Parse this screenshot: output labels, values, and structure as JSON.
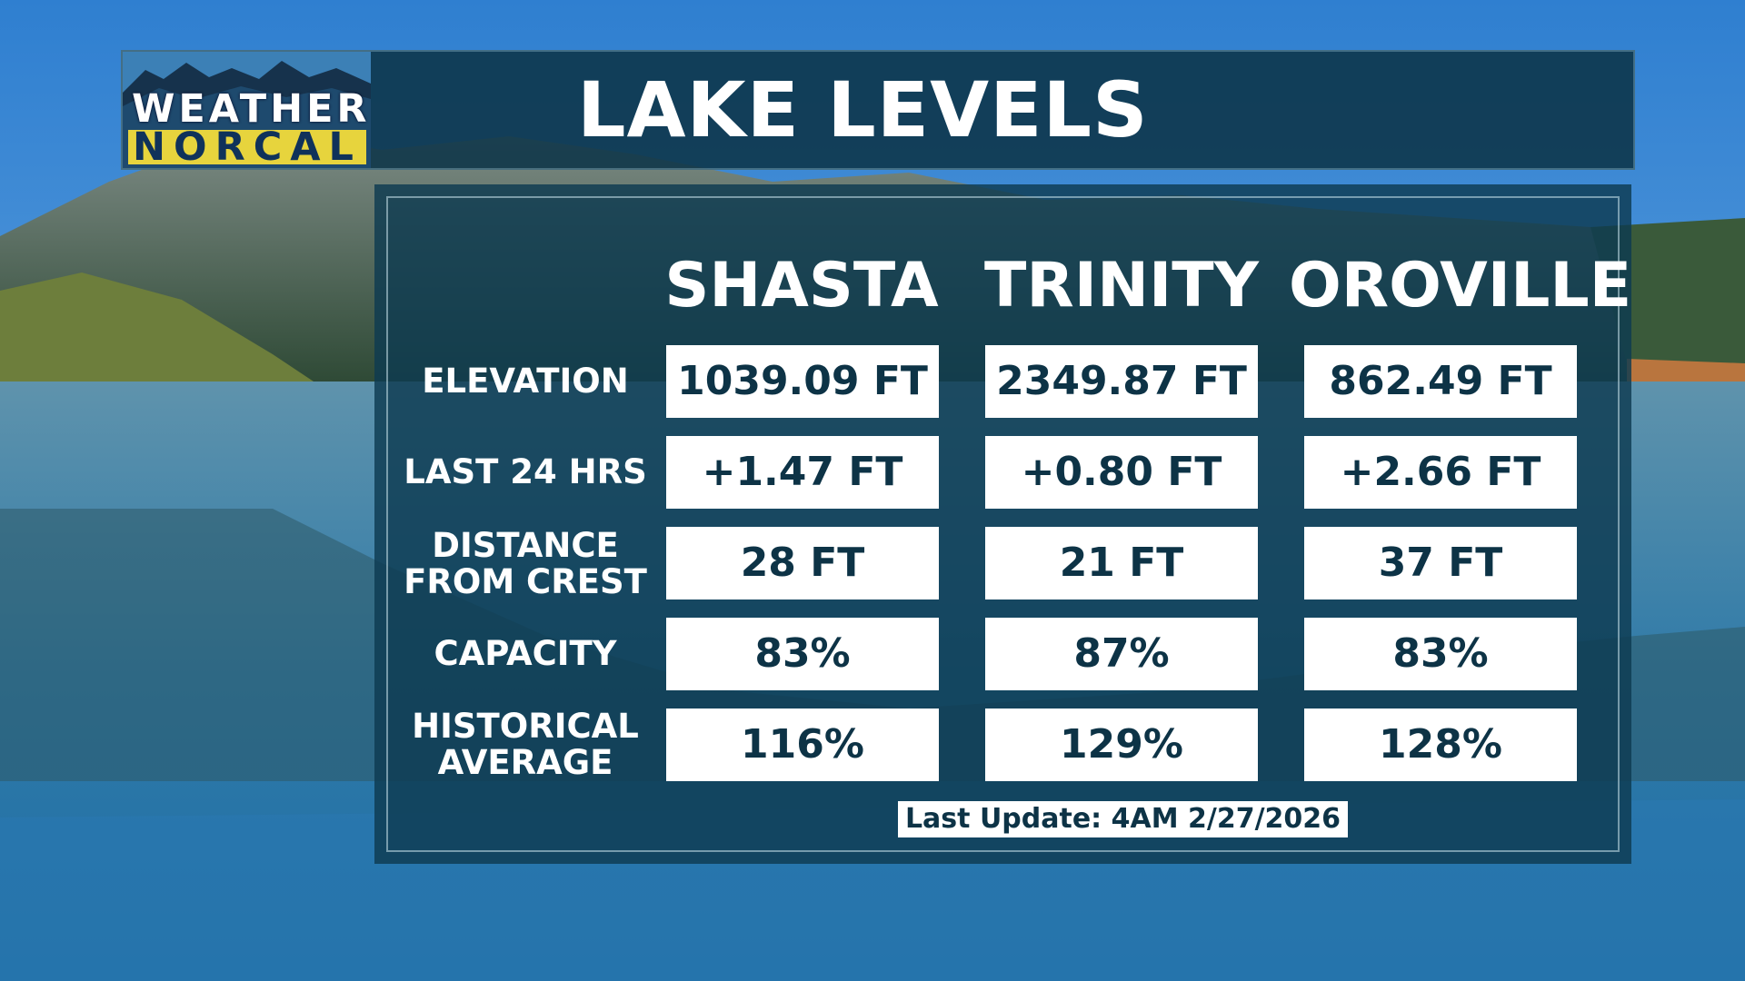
{
  "header": {
    "logo_top": "WEATHER",
    "logo_bottom": "NORCAL",
    "title": "LAKE LEVELS"
  },
  "lakes": [
    "SHASTA",
    "TRINITY",
    "OROVILLE"
  ],
  "rows": [
    {
      "label_lines": [
        "ELEVATION"
      ],
      "values": [
        "1039.09 FT",
        "2349.87 FT",
        "862.49 FT"
      ]
    },
    {
      "label_lines": [
        "LAST 24 HRS"
      ],
      "values": [
        "+1.47 FT",
        "+0.80 FT",
        "+2.66 FT"
      ]
    },
    {
      "label_lines": [
        "DISTANCE",
        "FROM CREST"
      ],
      "values": [
        "28 FT",
        "21 FT",
        "37 FT"
      ]
    },
    {
      "label_lines": [
        "CAPACITY"
      ],
      "values": [
        "83%",
        "87%",
        "83%"
      ]
    },
    {
      "label_lines": [
        "HISTORICAL",
        "AVERAGE"
      ],
      "values": [
        "116%",
        "129%",
        "128%"
      ]
    }
  ],
  "footer": {
    "last_update": "Last Update: 4AM 2/27/2026"
  },
  "colors": {
    "panel": "#0e3a50",
    "cell_text": "#0d3346",
    "logo_bar": "#e7d43d"
  }
}
